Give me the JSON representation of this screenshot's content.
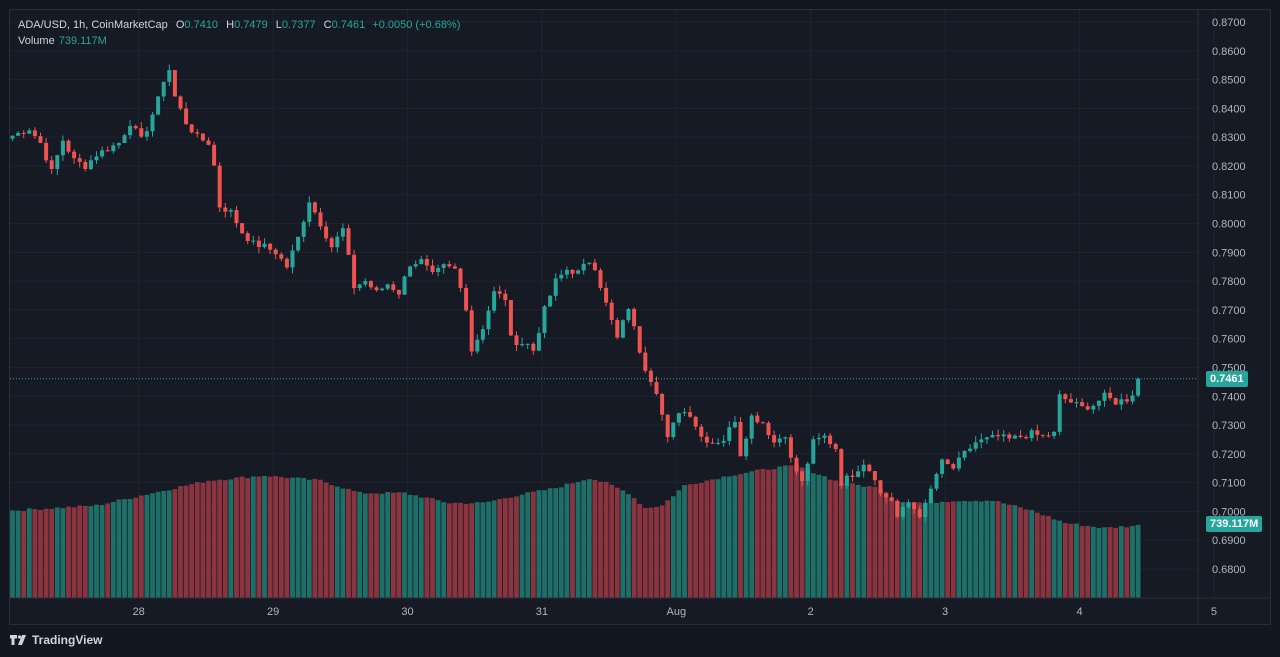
{
  "colors": {
    "up": "#26a69a",
    "down": "#ef5350",
    "volume_up": "#1e6f67",
    "volume_down": "#8a3440",
    "background": "#161a25",
    "grid": "#2a2e39",
    "text": "#b2b5be"
  },
  "legend": {
    "symbol": "ADA/USD, 1h, CoinMarketCap",
    "open_label": "O",
    "open": "0.7410",
    "high_label": "H",
    "high": "0.7479",
    "low_label": "L",
    "low": "0.7377",
    "close_label": "C",
    "close": "0.7461",
    "change": "+0.0050 (+0.68%)",
    "volume_label": "Volume",
    "volume": "739.117M"
  },
  "last_price_label": "0.7461",
  "last_volume_label": "739.117M",
  "brand": "TradingView",
  "brand_icon": "tradingview-logo-icon",
  "chart_data": {
    "type": "candlestick",
    "title": "ADA/USD, 1h, CoinMarketCap",
    "interval": "1h",
    "y_ticks": [
      "0.6800",
      "0.6900",
      "0.7000",
      "0.7100",
      "0.7200",
      "0.7300",
      "0.7400",
      "0.7500",
      "0.7600",
      "0.7700",
      "0.7800",
      "0.7900",
      "0.8000",
      "0.8100",
      "0.8200",
      "0.8300",
      "0.8400",
      "0.8500",
      "0.8600",
      "0.8700"
    ],
    "ylim": [
      0.674,
      0.8705
    ],
    "x_ticks": [
      {
        "label": "28",
        "index": 22
      },
      {
        "label": "29",
        "index": 46
      },
      {
        "label": "30",
        "index": 70
      },
      {
        "label": "31",
        "index": 94
      },
      {
        "label": "Aug",
        "index": 118
      },
      {
        "label": "2",
        "index": 142
      },
      {
        "label": "3",
        "index": 166
      },
      {
        "label": "4",
        "index": 190
      },
      {
        "label": "5",
        "index": 214
      }
    ],
    "last_price": 0.7461,
    "close_anchors": [
      [
        0,
        0.8305
      ],
      [
        3,
        0.833
      ],
      [
        5,
        0.828
      ],
      [
        7,
        0.818
      ],
      [
        9,
        0.829
      ],
      [
        11,
        0.822
      ],
      [
        13,
        0.82
      ],
      [
        15,
        0.824
      ],
      [
        17,
        0.826
      ],
      [
        19,
        0.828
      ],
      [
        21,
        0.835
      ],
      [
        23,
        0.829
      ],
      [
        24,
        0.833
      ],
      [
        26,
        0.843
      ],
      [
        27,
        0.85
      ],
      [
        28,
        0.8535
      ],
      [
        29,
        0.844
      ],
      [
        31,
        0.835
      ],
      [
        33,
        0.83
      ],
      [
        35,
        0.828
      ],
      [
        36,
        0.82
      ],
      [
        37,
        0.806
      ],
      [
        39,
        0.804
      ],
      [
        41,
        0.797
      ],
      [
        43,
        0.793
      ],
      [
        45,
        0.792
      ],
      [
        47,
        0.79
      ],
      [
        49,
        0.785
      ],
      [
        51,
        0.795
      ],
      [
        53,
        0.808
      ],
      [
        55,
        0.8
      ],
      [
        57,
        0.792
      ],
      [
        59,
        0.798
      ],
      [
        61,
        0.778
      ],
      [
        63,
        0.78
      ],
      [
        65,
        0.776
      ],
      [
        67,
        0.779
      ],
      [
        69,
        0.776
      ],
      [
        71,
        0.786
      ],
      [
        73,
        0.787
      ],
      [
        75,
        0.782
      ],
      [
        77,
        0.785
      ],
      [
        79,
        0.784
      ],
      [
        81,
        0.771
      ],
      [
        82,
        0.756
      ],
      [
        84,
        0.764
      ],
      [
        86,
        0.776
      ],
      [
        88,
        0.774
      ],
      [
        89,
        0.76
      ],
      [
        90,
        0.759
      ],
      [
        92,
        0.758
      ],
      [
        93,
        0.756
      ],
      [
        95,
        0.77
      ],
      [
        97,
        0.78
      ],
      [
        99,
        0.784
      ],
      [
        101,
        0.783
      ],
      [
        103,
        0.787
      ],
      [
        104,
        0.785
      ],
      [
        106,
        0.772
      ],
      [
        108,
        0.76
      ],
      [
        110,
        0.771
      ],
      [
        112,
        0.756
      ],
      [
        113,
        0.75
      ],
      [
        115,
        0.742
      ],
      [
        117,
        0.725
      ],
      [
        119,
        0.735
      ],
      [
        121,
        0.734
      ],
      [
        123,
        0.726
      ],
      [
        125,
        0.724
      ],
      [
        127,
        0.725
      ],
      [
        129,
        0.732
      ],
      [
        130,
        0.72
      ],
      [
        132,
        0.733
      ],
      [
        134,
        0.731
      ],
      [
        136,
        0.724
      ],
      [
        138,
        0.727
      ],
      [
        139,
        0.718
      ],
      [
        141,
        0.71
      ],
      [
        143,
        0.724
      ],
      [
        145,
        0.726
      ],
      [
        147,
        0.722
      ],
      [
        148,
        0.71
      ],
      [
        150,
        0.713
      ],
      [
        152,
        0.717
      ],
      [
        154,
        0.712
      ],
      [
        155,
        0.706
      ],
      [
        157,
        0.704
      ],
      [
        158,
        0.698
      ],
      [
        160,
        0.703
      ],
      [
        162,
        0.699
      ],
      [
        163,
        0.702
      ],
      [
        165,
        0.713
      ],
      [
        166,
        0.717
      ],
      [
        168,
        0.715
      ],
      [
        170,
        0.72
      ],
      [
        172,
        0.724
      ],
      [
        174,
        0.725
      ],
      [
        176,
        0.726
      ],
      [
        178,
        0.725
      ],
      [
        180,
        0.726
      ],
      [
        182,
        0.727
      ],
      [
        184,
        0.726
      ],
      [
        186,
        0.727
      ],
      [
        187,
        0.74
      ],
      [
        189,
        0.738
      ],
      [
        191,
        0.736
      ],
      [
        193,
        0.737
      ],
      [
        195,
        0.74
      ],
      [
        197,
        0.738
      ],
      [
        199,
        0.739
      ],
      [
        200,
        0.741
      ],
      [
        201,
        0.7461
      ]
    ],
    "volume_anchors": [
      [
        0,
        0.35
      ],
      [
        15,
        0.37
      ],
      [
        27,
        0.43
      ],
      [
        35,
        0.47
      ],
      [
        45,
        0.49
      ],
      [
        55,
        0.47
      ],
      [
        62,
        0.42
      ],
      [
        70,
        0.42
      ],
      [
        78,
        0.38
      ],
      [
        84,
        0.38
      ],
      [
        90,
        0.41
      ],
      [
        97,
        0.44
      ],
      [
        103,
        0.48
      ],
      [
        106,
        0.46
      ],
      [
        110,
        0.42
      ],
      [
        113,
        0.36
      ],
      [
        116,
        0.37
      ],
      [
        120,
        0.45
      ],
      [
        128,
        0.49
      ],
      [
        136,
        0.52
      ],
      [
        140,
        0.53
      ],
      [
        148,
        0.46
      ],
      [
        155,
        0.44
      ],
      [
        158,
        0.39
      ],
      [
        163,
        0.38
      ],
      [
        168,
        0.39
      ],
      [
        175,
        0.39
      ],
      [
        182,
        0.35
      ],
      [
        188,
        0.3
      ],
      [
        195,
        0.28
      ],
      [
        201,
        0.29
      ]
    ],
    "candles_count": 202
  }
}
